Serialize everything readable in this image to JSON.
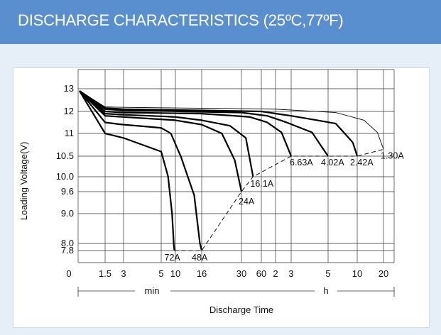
{
  "header": {
    "title": "DISCHARGE CHARACTERISTICS (25ºC,77ºF)"
  },
  "colors": {
    "header_bg": "#5a8fcf",
    "panel_bg": "#e6eef8",
    "curve": "#000000"
  },
  "chart_data": {
    "type": "line",
    "title": "DISCHARGE CHARACTERISTICS (25ºC,77ºF)",
    "xlabel": "Discharge Time",
    "ylabel": "Loading Voltage(V)",
    "x_scale": "log",
    "y_ticks": [
      "13",
      "12",
      "11",
      "10.5",
      "10.0",
      "9.6",
      "9.0",
      "8.0",
      "7.8"
    ],
    "x_ticks": [
      "0",
      "1.5",
      "3",
      "5",
      "10",
      "16",
      "30",
      "60",
      "2",
      "3",
      "5",
      "10",
      "20"
    ],
    "x_units": [
      "min",
      "h"
    ],
    "grid": true,
    "series": [
      {
        "name": "72A",
        "x_min": [
          0.2,
          1.5,
          3,
          5,
          7,
          8.5,
          9.2,
          9.5
        ],
        "y": [
          12.9,
          11.0,
          10.9,
          10.6,
          10.0,
          9.0,
          8.0,
          7.8
        ]
      },
      {
        "name": "48A",
        "x_min": [
          0.2,
          1.5,
          3,
          5,
          8,
          11,
          14,
          15.5,
          16
        ],
        "y": [
          12.9,
          11.5,
          11.4,
          11.25,
          11.0,
          10.5,
          9.5,
          8.0,
          7.8
        ]
      },
      {
        "name": "24A",
        "x_min": [
          0.2,
          1.5,
          3,
          10,
          16,
          22,
          27,
          30
        ],
        "y": [
          12.9,
          11.8,
          11.75,
          11.6,
          11.4,
          11.0,
          10.4,
          9.6
        ]
      },
      {
        "name": "16.1A",
        "x_min": [
          0.2,
          1.5,
          3,
          10,
          16,
          25,
          35,
          45
        ],
        "y": [
          12.9,
          11.9,
          11.85,
          11.75,
          11.6,
          11.35,
          10.9,
          10.0
        ]
      },
      {
        "name": "6.63A",
        "x_min": [
          0.2,
          1.5,
          3,
          16,
          40,
          80,
          140,
          180
        ],
        "y": [
          12.9,
          12.0,
          11.95,
          11.9,
          11.75,
          11.5,
          11.05,
          10.5
        ]
      },
      {
        "name": "4.02A",
        "x_min": [
          0.2,
          1.5,
          3,
          30,
          80,
          160,
          240,
          300
        ],
        "y": [
          12.9,
          12.1,
          12.05,
          11.95,
          11.8,
          11.5,
          11.05,
          10.5
        ]
      },
      {
        "name": "2.42A",
        "x_min": [
          0.2,
          1.5,
          3,
          60,
          180,
          360,
          540,
          600
        ],
        "y": [
          12.9,
          12.15,
          12.1,
          12.0,
          11.8,
          11.45,
          10.8,
          10.5
        ]
      },
      {
        "name": "1.30A",
        "x_min": [
          0.2,
          1.5,
          3,
          120,
          360,
          720,
          1020,
          1200
        ],
        "y": [
          12.9,
          12.2,
          12.18,
          12.1,
          11.95,
          11.6,
          11.05,
          10.65
        ]
      }
    ],
    "end_voltage_line": {
      "x_min": [
        9.5,
        16,
        30,
        45,
        180,
        300,
        600,
        1200
      ],
      "y": [
        7.8,
        7.8,
        9.6,
        10.0,
        10.5,
        10.5,
        10.5,
        10.65
      ]
    }
  }
}
